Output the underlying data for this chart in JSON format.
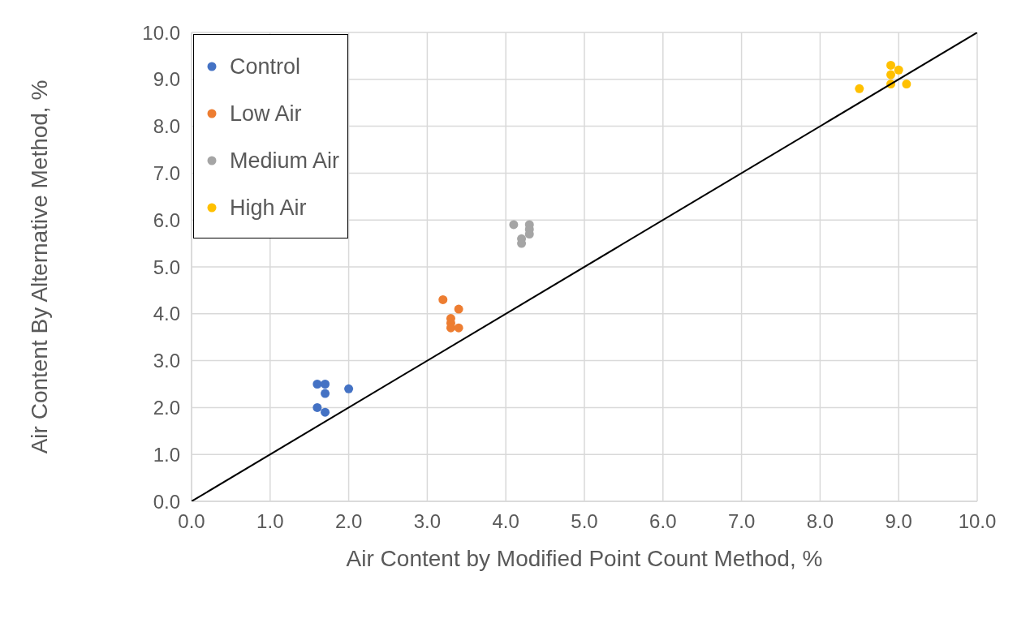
{
  "chart_data": {
    "type": "scatter",
    "xlabel": "Air Content by Modified Point Count Method, %",
    "ylabel": "Air Content By Alternative Method, %",
    "xlim": [
      0,
      10
    ],
    "ylim": [
      0,
      10
    ],
    "xticks": [
      {
        "value": 0,
        "label": "0.0"
      },
      {
        "value": 1,
        "label": "1.0"
      },
      {
        "value": 2,
        "label": "2.0"
      },
      {
        "value": 3,
        "label": "3.0"
      },
      {
        "value": 4,
        "label": "4.0"
      },
      {
        "value": 5,
        "label": "5.0"
      },
      {
        "value": 6,
        "label": "6.0"
      },
      {
        "value": 7,
        "label": "7.0"
      },
      {
        "value": 8,
        "label": "8.0"
      },
      {
        "value": 9,
        "label": "9.0"
      },
      {
        "value": 10,
        "label": "10.0"
      }
    ],
    "yticks": [
      {
        "value": 0,
        "label": "0.0"
      },
      {
        "value": 1,
        "label": "1.0"
      },
      {
        "value": 2,
        "label": "2.0"
      },
      {
        "value": 3,
        "label": "3.0"
      },
      {
        "value": 4,
        "label": "4.0"
      },
      {
        "value": 5,
        "label": "5.0"
      },
      {
        "value": 6,
        "label": "6.0"
      },
      {
        "value": 7,
        "label": "7.0"
      },
      {
        "value": 8,
        "label": "8.0"
      },
      {
        "value": 9,
        "label": "9.0"
      },
      {
        "value": 10,
        "label": "10.0"
      }
    ],
    "grid": true,
    "legend": "top left",
    "series": [
      {
        "name": "Control",
        "color": "#4472c4",
        "marker": "circle",
        "x": [
          1.6,
          1.7,
          1.7,
          2.0,
          1.6,
          1.7
        ],
        "values": [
          2.5,
          2.5,
          2.3,
          2.4,
          2.0,
          1.9
        ]
      },
      {
        "name": "Low Air",
        "color": "#ed7d31",
        "marker": "circle",
        "x": [
          3.2,
          3.4,
          3.3,
          3.3,
          3.3,
          3.4
        ],
        "values": [
          4.3,
          4.1,
          3.9,
          3.8,
          3.7,
          3.7
        ]
      },
      {
        "name": "Medium Air",
        "color": "#a5a5a5",
        "marker": "circle",
        "x": [
          4.1,
          4.3,
          4.3,
          4.3,
          4.2,
          4.2
        ],
        "values": [
          5.9,
          5.9,
          5.8,
          5.7,
          5.6,
          5.5
        ]
      },
      {
        "name": "High Air",
        "color": "#ffc000",
        "marker": "circle",
        "x": [
          8.9,
          9.0,
          8.9,
          8.9,
          9.1,
          8.5
        ],
        "values": [
          9.3,
          9.2,
          9.1,
          8.9,
          8.9,
          8.8
        ]
      },
      {
        "type": "line",
        "color": "#000000",
        "marker": "none",
        "x": [
          0,
          10
        ],
        "values": [
          0,
          10
        ]
      }
    ]
  }
}
